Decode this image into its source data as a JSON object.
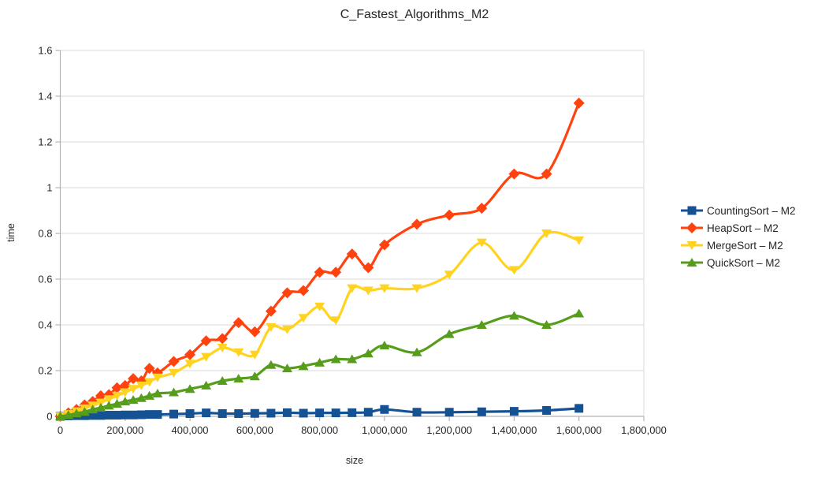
{
  "chart_data": {
    "type": "line",
    "title": "C_Fastest_Algorithms_M2",
    "xlabel": "size",
    "ylabel": "time",
    "xlim": [
      0,
      1800000
    ],
    "ylim": [
      0,
      1.6
    ],
    "grid": "horizontal",
    "legend_position": "right",
    "line_smoothing": true,
    "x_ticks": [
      0,
      200000,
      400000,
      600000,
      800000,
      1000000,
      1200000,
      1400000,
      1600000,
      1800000
    ],
    "x_tick_labels": [
      "0",
      "200,000",
      "400,000",
      "600,000",
      "800,000",
      "1,000,000",
      "1,200,000",
      "1,400,000",
      "1,600,000",
      "1,800,000"
    ],
    "y_ticks": [
      0,
      0.2,
      0.4,
      0.6,
      0.8,
      1.0,
      1.2,
      1.4,
      1.6
    ],
    "y_tick_labels": [
      "0",
      "0.2",
      "0.4",
      "0.6",
      "0.8",
      "1",
      "1.2",
      "1.4",
      "1.6"
    ],
    "x": [
      0,
      25000,
      50000,
      75000,
      100000,
      125000,
      150000,
      175000,
      200000,
      225000,
      250000,
      275000,
      300000,
      350000,
      400000,
      450000,
      500000,
      550000,
      600000,
      650000,
      700000,
      750000,
      800000,
      850000,
      900000,
      950000,
      1000000,
      1100000,
      1200000,
      1300000,
      1400000,
      1500000,
      1600000
    ],
    "series": [
      {
        "name": "CountingSort – M2",
        "color": "#155294",
        "marker": "square",
        "values": [
          0,
          0.002,
          0.003,
          0.003,
          0.004,
          0.004,
          0.005,
          0.005,
          0.006,
          0.006,
          0.007,
          0.008,
          0.008,
          0.01,
          0.012,
          0.015,
          0.012,
          0.012,
          0.013,
          0.014,
          0.016,
          0.014,
          0.015,
          0.015,
          0.016,
          0.018,
          0.03,
          0.018,
          0.018,
          0.02,
          0.022,
          0.026,
          0.035
        ]
      },
      {
        "name": "HeapSort – M2",
        "color": "#ff420e",
        "marker": "diamond",
        "values": [
          0,
          0.015,
          0.03,
          0.05,
          0.065,
          0.09,
          0.095,
          0.125,
          0.135,
          0.165,
          0.155,
          0.21,
          0.19,
          0.24,
          0.27,
          0.33,
          0.34,
          0.41,
          0.37,
          0.46,
          0.54,
          0.55,
          0.63,
          0.63,
          0.71,
          0.65,
          0.75,
          0.84,
          0.88,
          0.91,
          1.06,
          1.06,
          1.37
        ]
      },
      {
        "name": "MergeSort – M2",
        "color": "#ffd320",
        "marker": "triangle-down",
        "values": [
          0,
          0.01,
          0.022,
          0.035,
          0.048,
          0.06,
          0.075,
          0.09,
          0.105,
          0.12,
          0.135,
          0.15,
          0.17,
          0.19,
          0.23,
          0.26,
          0.3,
          0.28,
          0.27,
          0.39,
          0.38,
          0.43,
          0.48,
          0.42,
          0.56,
          0.55,
          0.56,
          0.56,
          0.62,
          0.76,
          0.64,
          0.8,
          0.77
        ]
      },
      {
        "name": "QuickSort – M2",
        "color": "#579d1c",
        "marker": "triangle-up",
        "values": [
          0,
          0.006,
          0.013,
          0.02,
          0.03,
          0.038,
          0.047,
          0.055,
          0.065,
          0.072,
          0.08,
          0.09,
          0.1,
          0.105,
          0.12,
          0.135,
          0.155,
          0.165,
          0.175,
          0.225,
          0.21,
          0.22,
          0.235,
          0.25,
          0.25,
          0.275,
          0.31,
          0.28,
          0.36,
          0.4,
          0.44,
          0.4,
          0.45
        ]
      }
    ]
  },
  "colors": {
    "grid": "#d9d9d9",
    "axis": "#b3b3b3",
    "text": "#262626",
    "background": "#ffffff"
  }
}
